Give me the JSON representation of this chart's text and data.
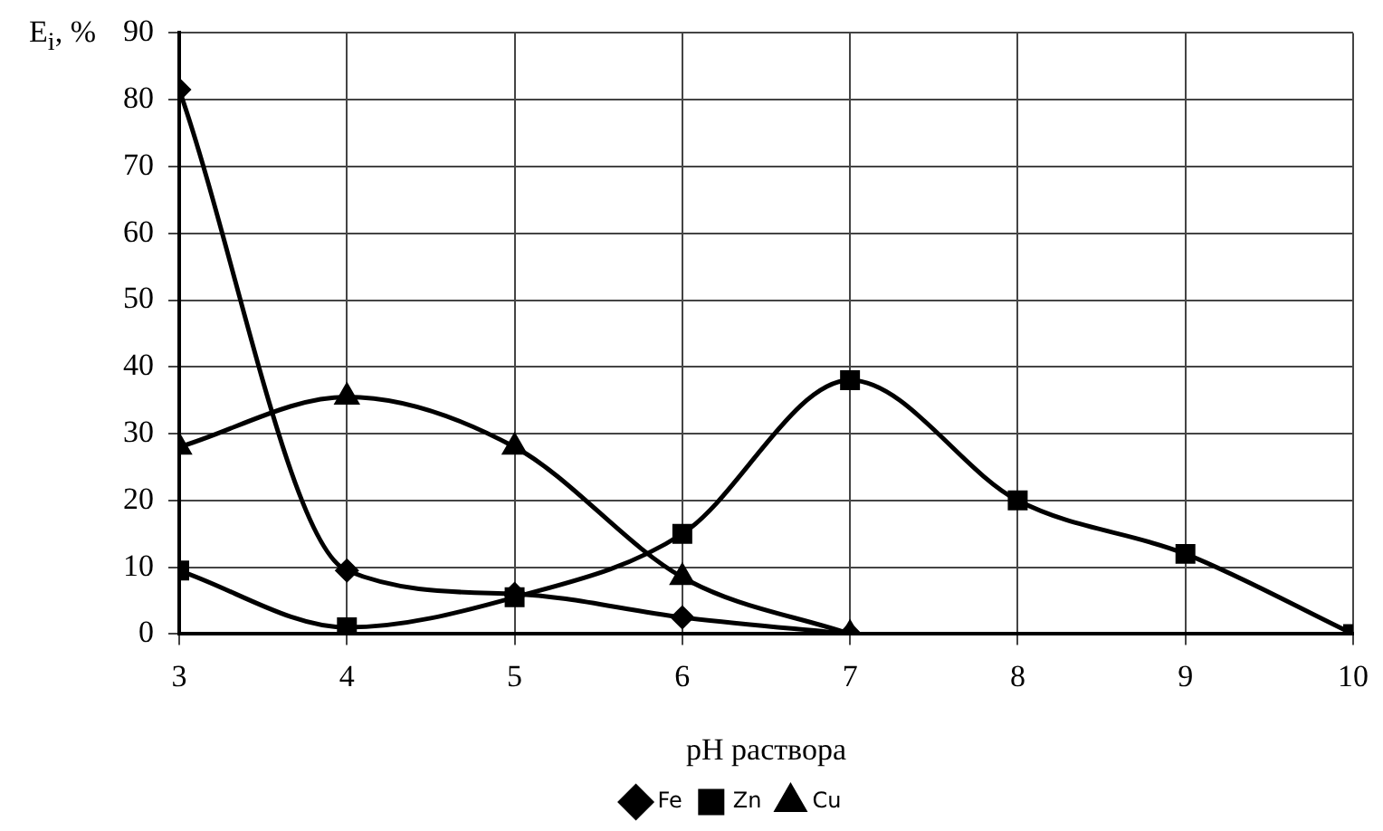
{
  "chart_data": {
    "type": "line",
    "xlabel": "pH раствора",
    "ylabel": "E$_{i}$, %",
    "series": [
      {
        "name": "Fe",
        "color": "#000000",
        "marker": "diamond",
        "x": [
          3,
          4,
          5,
          6,
          7
        ],
        "values": [
          81.5,
          9.5,
          6,
          2.5,
          0
        ]
      },
      {
        "name": "Zn",
        "color": "#000000",
        "marker": "square",
        "x": [
          3,
          4,
          5,
          6,
          7,
          8,
          9,
          10
        ],
        "values": [
          9.5,
          1,
          5.5,
          15,
          38,
          20,
          12,
          0
        ]
      },
      {
        "name": "Cu",
        "color": "#000000",
        "marker": "triangle",
        "x": [
          3,
          4,
          5,
          6,
          7
        ],
        "values": [
          28,
          35.5,
          28,
          8.5,
          0
        ]
      }
    ],
    "xlim": [
      3,
      10
    ],
    "xticks": [
      3,
      4,
      5,
      6,
      7,
      8,
      9,
      10
    ],
    "ylim": [
      0,
      90
    ],
    "yticks": [
      0,
      10,
      20,
      30,
      40,
      50,
      60,
      70,
      80,
      90
    ],
    "grid": true,
    "legend": "bottom",
    "line_style": "solid"
  }
}
